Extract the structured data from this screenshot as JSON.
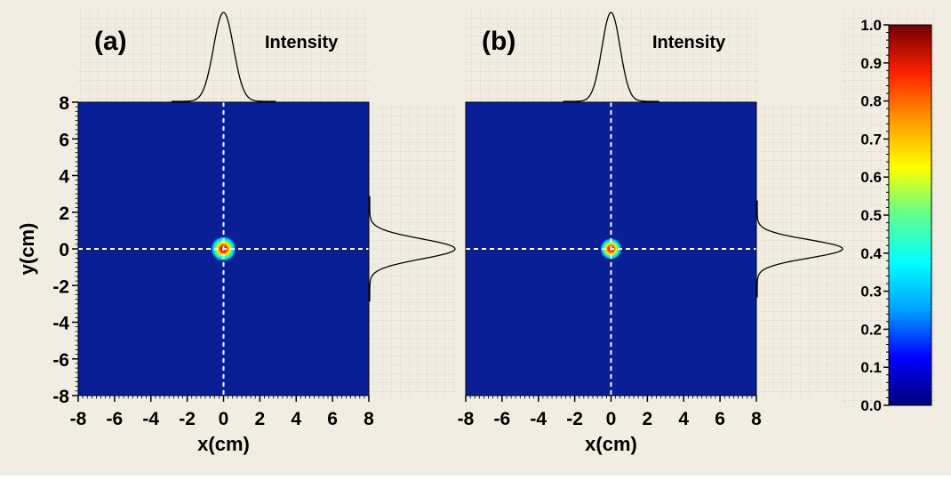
{
  "colors": {
    "background": "#f1ede3",
    "grid": "#cfcac0",
    "field": "#0a1f96",
    "crosshair": "#ffffff",
    "profile": "#000000",
    "text": "#000000"
  },
  "chart_data": [
    {
      "type": "heatmap",
      "panel_label": "(a)",
      "profile_label": "Intensity",
      "xlabel": "x(cm)",
      "ylabel": "y(cm)",
      "xlim": [
        -8,
        8
      ],
      "ylim": [
        -8,
        8
      ],
      "xticks": [
        "-8",
        "-6",
        "-4",
        "-2",
        "0",
        "2",
        "4",
        "6",
        "8"
      ],
      "yticks": [
        "8",
        "6",
        "4",
        "2",
        "0",
        "-2",
        "-4",
        "-6",
        "-8"
      ],
      "beam_center": [
        0,
        0
      ],
      "beam_radius_cm": 0.7,
      "profile_sigma_cm": 0.55,
      "profile_extent_cm": 2.5,
      "crosshair": [
        0,
        0
      ]
    },
    {
      "type": "heatmap",
      "panel_label": "(b)",
      "profile_label": "Intensity",
      "xlabel": "x(cm)",
      "ylabel": "",
      "xlim": [
        -8,
        8
      ],
      "ylim": [
        -8,
        8
      ],
      "xticks": [
        "-8",
        "-6",
        "-4",
        "-2",
        "0",
        "2",
        "4",
        "6",
        "8"
      ],
      "yticks": [],
      "beam_center": [
        0,
        0
      ],
      "beam_radius_cm": 0.6,
      "profile_sigma_cm": 0.5,
      "profile_extent_cm": 2.3,
      "crosshair": [
        0,
        0
      ]
    }
  ],
  "colorbar": {
    "min": 0.0,
    "max": 1.0,
    "ticks": [
      "1.0",
      "0.9",
      "0.8",
      "0.7",
      "0.6",
      "0.5",
      "0.4",
      "0.3",
      "0.2",
      "0.1",
      "0.0"
    ],
    "stops": [
      "#00007a",
      "#0000ff",
      "#00a0ff",
      "#00ffff",
      "#60ff90",
      "#ffff00",
      "#ff9900",
      "#ff2000",
      "#700000"
    ]
  }
}
